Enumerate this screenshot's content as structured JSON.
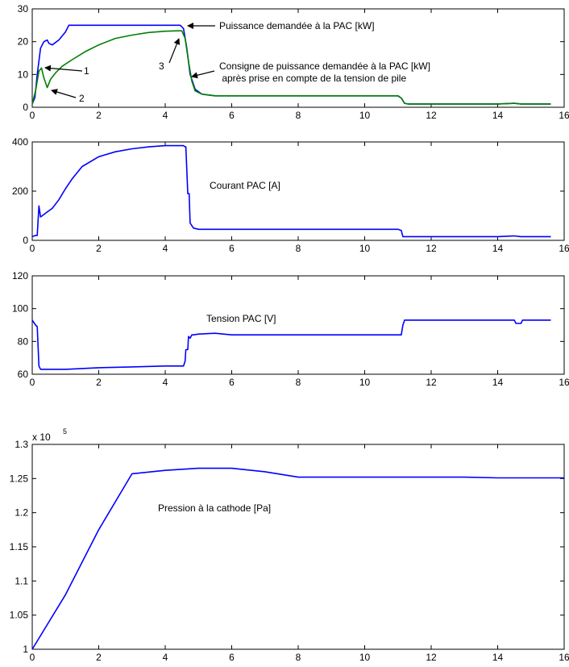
{
  "chart_data": [
    {
      "type": "line",
      "xlim": [
        0,
        16
      ],
      "ylim": [
        0,
        30
      ],
      "xticks": [
        0,
        2,
        4,
        6,
        8,
        10,
        12,
        14,
        16
      ],
      "yticks": [
        0,
        10,
        20,
        30
      ],
      "grid": false,
      "series": [
        {
          "color": "#0000ff",
          "x": [
            0.0,
            0.08,
            0.15,
            0.25,
            0.35,
            0.45,
            0.5,
            0.6,
            0.8,
            1.0,
            1.1,
            2.0,
            3.0,
            4.0,
            4.45,
            4.55,
            4.65,
            4.75,
            4.9,
            5.1,
            5.5,
            6.0,
            8.0,
            10.0,
            11.0,
            11.1,
            11.2,
            11.3,
            12.0,
            14.0,
            14.5,
            14.7,
            15.0,
            15.6
          ],
          "y": [
            1.0,
            3.0,
            10.0,
            18.0,
            20.0,
            20.5,
            19.5,
            19.0,
            20.5,
            23.0,
            25.0,
            25.0,
            25.0,
            25.0,
            25.0,
            24.0,
            18.0,
            10.0,
            5.5,
            4.0,
            3.5,
            3.5,
            3.5,
            3.5,
            3.5,
            2.8,
            1.2,
            1.0,
            1.0,
            1.0,
            1.2,
            1.0,
            1.0,
            1.0
          ]
        },
        {
          "color": "#008000",
          "x": [
            0.0,
            0.1,
            0.2,
            0.28,
            0.35,
            0.45,
            0.55,
            0.7,
            0.9,
            1.2,
            1.6,
            2.0,
            2.5,
            3.0,
            3.5,
            4.0,
            4.4,
            4.5,
            4.6,
            4.7,
            4.8,
            4.9,
            5.1,
            5.5,
            6.0,
            8.0,
            10.0,
            11.0,
            11.1,
            11.2,
            11.3,
            12.0,
            14.0,
            14.5,
            14.7,
            15.0,
            15.6
          ],
          "y": [
            1.0,
            5.0,
            11.0,
            12.0,
            9.0,
            6.0,
            8.5,
            10.5,
            12.5,
            14.5,
            17.0,
            19.0,
            21.0,
            22.0,
            22.8,
            23.2,
            23.3,
            23.3,
            21.0,
            14.0,
            8.0,
            5.0,
            4.0,
            3.5,
            3.5,
            3.5,
            3.5,
            3.5,
            2.8,
            1.2,
            1.0,
            1.0,
            1.0,
            1.2,
            1.0,
            1.0,
            1.0
          ]
        }
      ],
      "annotations": [
        {
          "text": "Puissance demandée à la PAC [kW]",
          "point_x": 4.55,
          "point_y": 25.0
        },
        {
          "text": "Consigne de puissance demandée à la PAC [kW]"
        },
        {
          "text": " après prise en compte de la tension de pile",
          "point_x": 4.65,
          "point_y": 21.0
        },
        {
          "text": "1",
          "point_x": 0.28,
          "point_y": 12.0
        },
        {
          "text": "2",
          "point_x": 0.45,
          "point_y": 6.0
        },
        {
          "text": "3",
          "point_x": 4.45,
          "point_y": 23.3
        }
      ]
    },
    {
      "type": "line",
      "xlim": [
        0,
        16
      ],
      "ylim": [
        0,
        400
      ],
      "xticks": [
        0,
        2,
        4,
        6,
        8,
        10,
        12,
        14,
        16
      ],
      "yticks": [
        0,
        200,
        400
      ],
      "grid": false,
      "series": [
        {
          "color": "#0000ff",
          "x": [
            0.0,
            0.1,
            0.15,
            0.2,
            0.25,
            0.3,
            0.4,
            0.6,
            0.8,
            1.0,
            1.2,
            1.5,
            2.0,
            2.5,
            3.0,
            3.5,
            4.0,
            4.4,
            4.55,
            4.6,
            4.62,
            4.68,
            4.72,
            4.75,
            4.8,
            4.85,
            5.0,
            6.0,
            8.0,
            10.0,
            11.0,
            11.1,
            11.15,
            11.2,
            12.0,
            14.0,
            14.5,
            14.7,
            15.0,
            15.6
          ],
          "y": [
            15,
            20,
            20,
            140,
            95,
            100,
            110,
            130,
            165,
            210,
            250,
            300,
            340,
            360,
            372,
            380,
            385,
            385,
            385,
            380,
            380,
            190,
            190,
            70,
            60,
            50,
            45,
            45,
            45,
            45,
            45,
            40,
            15,
            15,
            15,
            15,
            18,
            15,
            15,
            15
          ]
        }
      ],
      "annotations": [
        {
          "text": "Courant PAC [A]"
        }
      ]
    },
    {
      "type": "line",
      "xlim": [
        0,
        16
      ],
      "ylim": [
        60,
        120
      ],
      "xticks": [
        0,
        2,
        4,
        6,
        8,
        10,
        12,
        14,
        16
      ],
      "yticks": [
        60,
        80,
        100,
        120
      ],
      "grid": false,
      "series": [
        {
          "color": "#0000ff",
          "x": [
            0.0,
            0.1,
            0.15,
            0.2,
            0.25,
            0.4,
            0.6,
            1.0,
            1.5,
            2.0,
            3.0,
            4.0,
            4.5,
            4.55,
            4.6,
            4.62,
            4.68,
            4.7,
            4.75,
            4.8,
            4.85,
            5.0,
            5.5,
            6.0,
            8.0,
            10.0,
            11.0,
            11.1,
            11.15,
            11.2,
            12.0,
            14.0,
            14.5,
            14.55,
            14.7,
            14.75,
            15.0,
            15.6
          ],
          "y": [
            93,
            90,
            89,
            65,
            63,
            63,
            63,
            63,
            63.5,
            64,
            64.5,
            65,
            65,
            65,
            68,
            75,
            75,
            83,
            82,
            84,
            84,
            84.5,
            85,
            84,
            84,
            84,
            84,
            84,
            90,
            93,
            93,
            93,
            93,
            91,
            91,
            93,
            93,
            93
          ]
        }
      ],
      "annotations": [
        {
          "text": "Tension PAC [V]"
        }
      ]
    },
    {
      "type": "line",
      "xlim": [
        0,
        16
      ],
      "ylim": [
        1.0,
        1.3
      ],
      "xticks": [
        0,
        2,
        4,
        6,
        8,
        10,
        12,
        14,
        16
      ],
      "yticks": [
        1.0,
        1.05,
        1.1,
        1.15,
        1.2,
        1.25,
        1.3
      ],
      "ytick_labels": [
        "1",
        "1.05",
        "1.1",
        "1.15",
        "1.2",
        "1.25",
        "1.3"
      ],
      "y_multiplier": {
        "base": "x 10",
        "exponent": "5"
      },
      "grid": false,
      "series": [
        {
          "color": "#0000ff",
          "x": [
            0,
            1,
            2,
            3,
            4,
            5,
            6,
            7,
            8,
            9,
            10,
            11,
            12,
            13,
            14,
            15,
            16
          ],
          "y": [
            1.0,
            1.08,
            1.175,
            1.257,
            1.262,
            1.265,
            1.265,
            1.26,
            1.252,
            1.252,
            1.252,
            1.252,
            1.252,
            1.252,
            1.251,
            1.251,
            1.251
          ]
        }
      ],
      "annotations": [
        {
          "text": "Pression à la cathode [Pa]"
        }
      ]
    }
  ]
}
